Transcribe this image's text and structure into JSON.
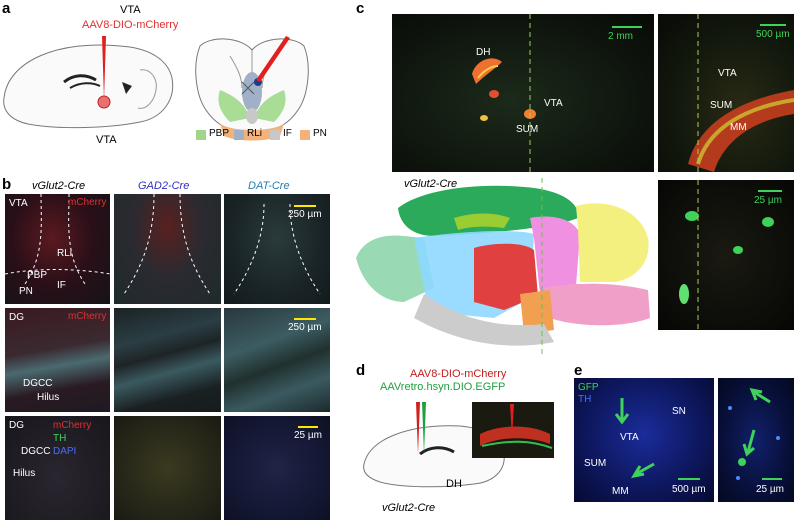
{
  "a": {
    "panel_label": "a",
    "title": "VTA",
    "virus": "AAV8-DIO-mCherry",
    "site_label": "VTA",
    "legend": [
      {
        "label": "PBP",
        "color": "#9fd68a"
      },
      {
        "label": "RLi",
        "color": "#9fb0c8"
      },
      {
        "label": "IF",
        "color": "#c8c8c8"
      },
      {
        "label": "PN",
        "color": "#f2b27a"
      }
    ]
  },
  "b": {
    "panel_label": "b",
    "columns": [
      "vGlut2-Cre",
      "GAD2-Cre",
      "DAT-Cre"
    ],
    "row1": {
      "region": "VTA",
      "stain": "mCherry",
      "regions": [
        "RLi",
        "PBP",
        "IF",
        "PN"
      ],
      "scale": "250 µm"
    },
    "row2": {
      "region": "DG",
      "stain": "mCherry",
      "labels": [
        "DGCC",
        "Hilus"
      ],
      "scale": "250 µm"
    },
    "row3": {
      "region": "DG",
      "stains": [
        "mCherry",
        "TH",
        "DAPI"
      ],
      "labels": [
        "DGCC",
        "Hilus"
      ],
      "scale": "25 µm"
    }
  },
  "c": {
    "panel_label": "c",
    "overview_labels": [
      "DH",
      "VTA",
      "SUM"
    ],
    "overview_scale": "2 mm",
    "zoom_labels": [
      "VTA",
      "SUM",
      "MM"
    ],
    "zoom_scale": "500 µm",
    "atlas_label": "vGlut2-Cre",
    "detail_scale": "25 µm"
  },
  "d": {
    "panel_label": "d",
    "virus1": "AAV8-DIO-mCherry",
    "virus2": "AAVretro.hsyn.DIO.EGFP",
    "site_label": "DH",
    "mouse_line": "vGlut2-Cre"
  },
  "e": {
    "panel_label": "e",
    "stain1": "GFP",
    "stain2": "TH",
    "labels": [
      "SN",
      "VTA",
      "SUM",
      "MM"
    ],
    "scale1": "500 µm",
    "scale2": "25 µm"
  }
}
